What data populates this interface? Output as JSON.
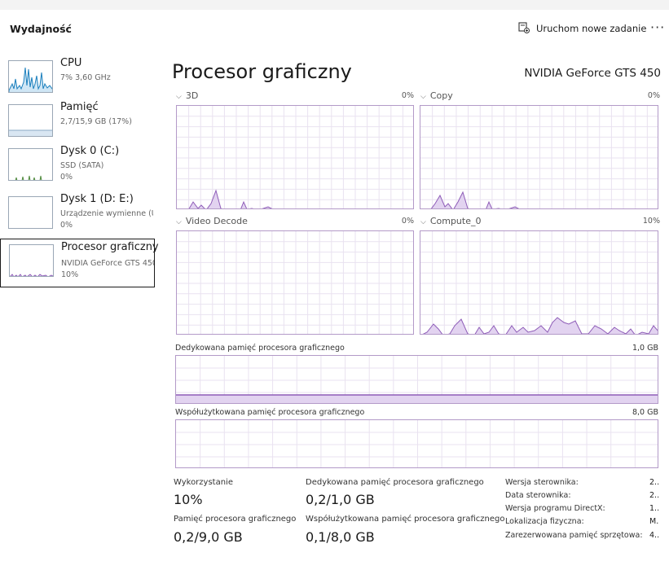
{
  "header": {
    "title": "Wydajność",
    "new_task_label": "Uruchom nowe zadanie",
    "more_label": "···"
  },
  "sidebar": {
    "items": [
      {
        "name": "CPU",
        "line1": "7% 3,60 GHz",
        "line2": "",
        "color": "#1a7fbd"
      },
      {
        "name": "Pamięć",
        "line1": "2,7/15,9 GB (17%)",
        "line2": "",
        "color": "#8aa9c4"
      },
      {
        "name": "Dysk 0 (C:)",
        "line1": "SSD (SATA)",
        "line2": "0%",
        "color": "#4f8a3c"
      },
      {
        "name": "Dysk 1 (D: E:)",
        "line1": "Urządzenie wymienne (U",
        "line2": "0%",
        "color": "#4f8a3c"
      },
      {
        "name": "Procesor graficzny",
        "line1": "NVIDIA GeForce GTS 450",
        "line2": "10%",
        "color": "#8e5cb8"
      }
    ]
  },
  "main": {
    "title": "Procesor graficzny",
    "gpu_name": "NVIDIA GeForce GTS 450",
    "engines": [
      {
        "label": "3D",
        "percent": "0%"
      },
      {
        "label": "Copy",
        "percent": "0%"
      },
      {
        "label": "Video Decode",
        "percent": "0%"
      },
      {
        "label": "Compute_0",
        "percent": "10%"
      }
    ],
    "dedicated_memory": {
      "label": "Dedykowana pamięć procesora graficznego",
      "max": "1,0 GB",
      "usage_fraction": 0.2
    },
    "shared_memory": {
      "label": "Współużytkowana pamięć procesora graficznego",
      "max": "8,0 GB",
      "usage_fraction": 0.0125
    }
  },
  "stats": {
    "utilization": {
      "label": "Wykorzystanie",
      "value": "10%"
    },
    "dedicated": {
      "label": "Dedykowana pamięć procesora graficznego",
      "value": "0,2/1,0 GB"
    },
    "gpu_memory": {
      "label": "Pamięć procesora graficznego",
      "value": "0,2/9,0 GB"
    },
    "shared": {
      "label": "Współużytkowana pamięć procesora graficznego",
      "value": "0,1/8,0 GB"
    }
  },
  "info": [
    {
      "key": "Wersja sterownika:",
      "value": "2.."
    },
    {
      "key": "Data sterownika:",
      "value": "2.."
    },
    {
      "key": "Wersja programu DirectX:",
      "value": "1.."
    },
    {
      "key": "Lokalizacja fizyczna:",
      "value": "M."
    },
    {
      "key": "Zarezerwowana pamięć sprzętowa:",
      "value": "4.."
    }
  ],
  "colors": {
    "gpu_line": "#8e5cb8",
    "gpu_fill": "#e2d3f0",
    "grid": "#e9e2f0"
  }
}
